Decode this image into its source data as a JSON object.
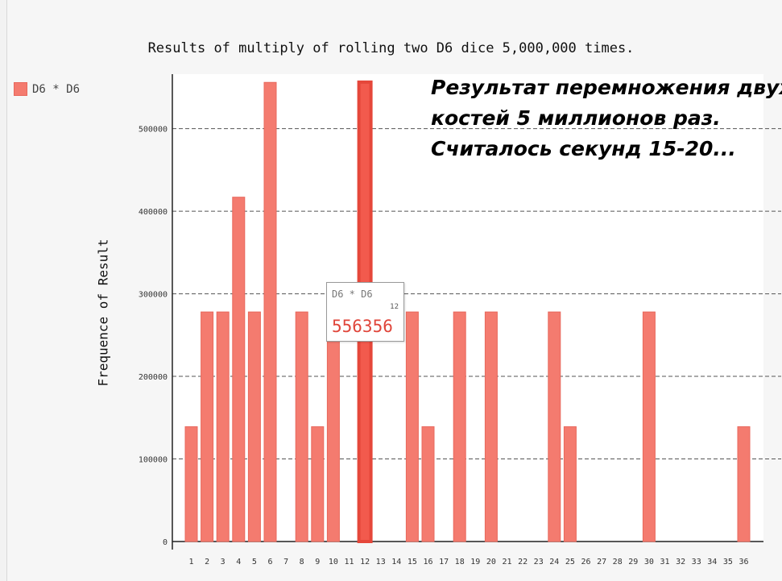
{
  "chart_data": {
    "type": "bar",
    "title": "Results of multiply of rolling two D6 dice 5,000,000 times.",
    "ylabel": "Frequence of Result",
    "xlabel": "",
    "categories": [
      "1",
      "2",
      "3",
      "4",
      "5",
      "6",
      "7",
      "8",
      "9",
      "10",
      "11",
      "12",
      "13",
      "14",
      "15",
      "16",
      "17",
      "18",
      "19",
      "20",
      "21",
      "22",
      "23",
      "24",
      "25",
      "26",
      "27",
      "28",
      "29",
      "30",
      "31",
      "32",
      "33",
      "34",
      "35",
      "36"
    ],
    "series": [
      {
        "name": "D6 * D6",
        "values": [
          139000,
          278000,
          278000,
          417000,
          278000,
          556000,
          0,
          278000,
          139000,
          278000,
          0,
          556356,
          0,
          0,
          278000,
          139000,
          0,
          278000,
          0,
          278000,
          0,
          0,
          0,
          278000,
          139000,
          0,
          0,
          0,
          0,
          278000,
          0,
          0,
          0,
          0,
          0,
          139000
        ]
      }
    ],
    "ylim": [
      0,
      566000
    ],
    "yticks": [
      0,
      100000,
      200000,
      300000,
      400000,
      500000
    ],
    "ytick_labels": [
      "0",
      "100000",
      "200000",
      "300000",
      "400000",
      "500000"
    ],
    "grid": "horizontal dashed",
    "legend_position": "top-left",
    "bar_color": "#f47b6f",
    "highlight_color": "#f25a4d",
    "highlighted_category": "12"
  },
  "annotation": {
    "lines": [
      "Результат перемножения двух",
      "костей 5 миллионов раз.",
      "Считалось секунд 15-20..."
    ]
  },
  "tooltip": {
    "series": "D6 * D6",
    "x": "12",
    "value": "556356"
  }
}
